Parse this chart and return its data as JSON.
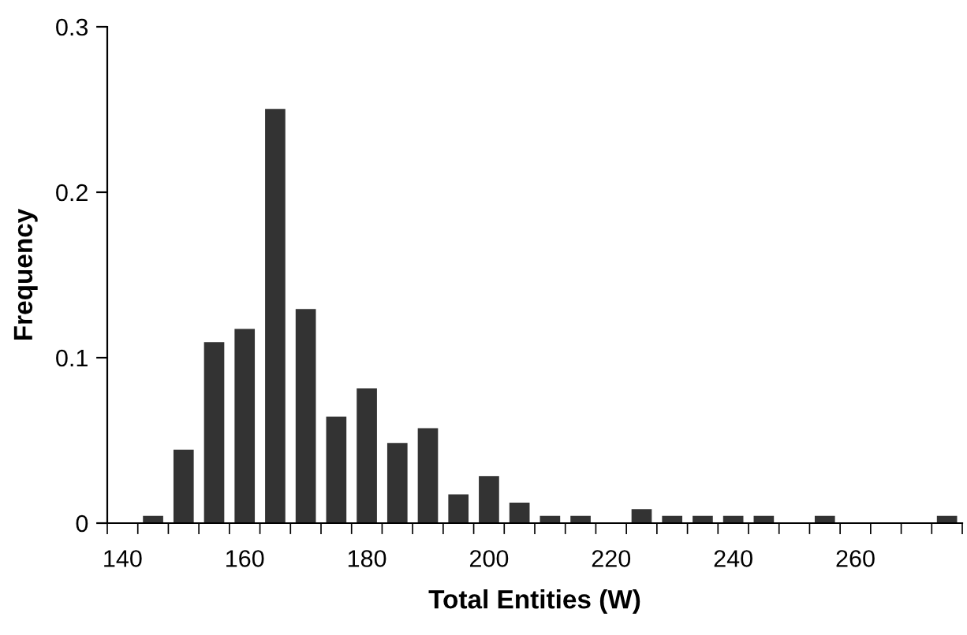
{
  "chart_data": {
    "type": "histogram",
    "xlabel": "Total Entities (W)",
    "ylabel": "Frequency",
    "bins": [
      137.5,
      142.5,
      147.5,
      152.5,
      157.5,
      162.5,
      167.5,
      172.5,
      177.5,
      182.5,
      187.5,
      192.5,
      197.5,
      202.5,
      207.5,
      212.5,
      217.5,
      222.5,
      227.5,
      232.5,
      237.5,
      242.5,
      247.5,
      252.5,
      257.5,
      262.5,
      267.5,
      272.5,
      277.5
    ],
    "values": [
      0,
      0.004,
      0.044,
      0.109,
      0.117,
      0.25,
      0.129,
      0.064,
      0.081,
      0.048,
      0.057,
      0.017,
      0.028,
      0.012,
      0.004,
      0.004,
      0,
      0.008,
      0.004,
      0.004,
      0.004,
      0.004,
      0,
      0.004,
      0,
      0,
      0,
      0.004
    ],
    "color": "#333333",
    "xlim": [
      137.5,
      277.5
    ],
    "xticks": [
      140,
      160,
      180,
      200,
      220,
      240,
      260
    ],
    "ylim": [
      0,
      0.3
    ],
    "yticks": [
      0,
      0.1,
      0.2,
      0.3
    ],
    "grid": false
  }
}
